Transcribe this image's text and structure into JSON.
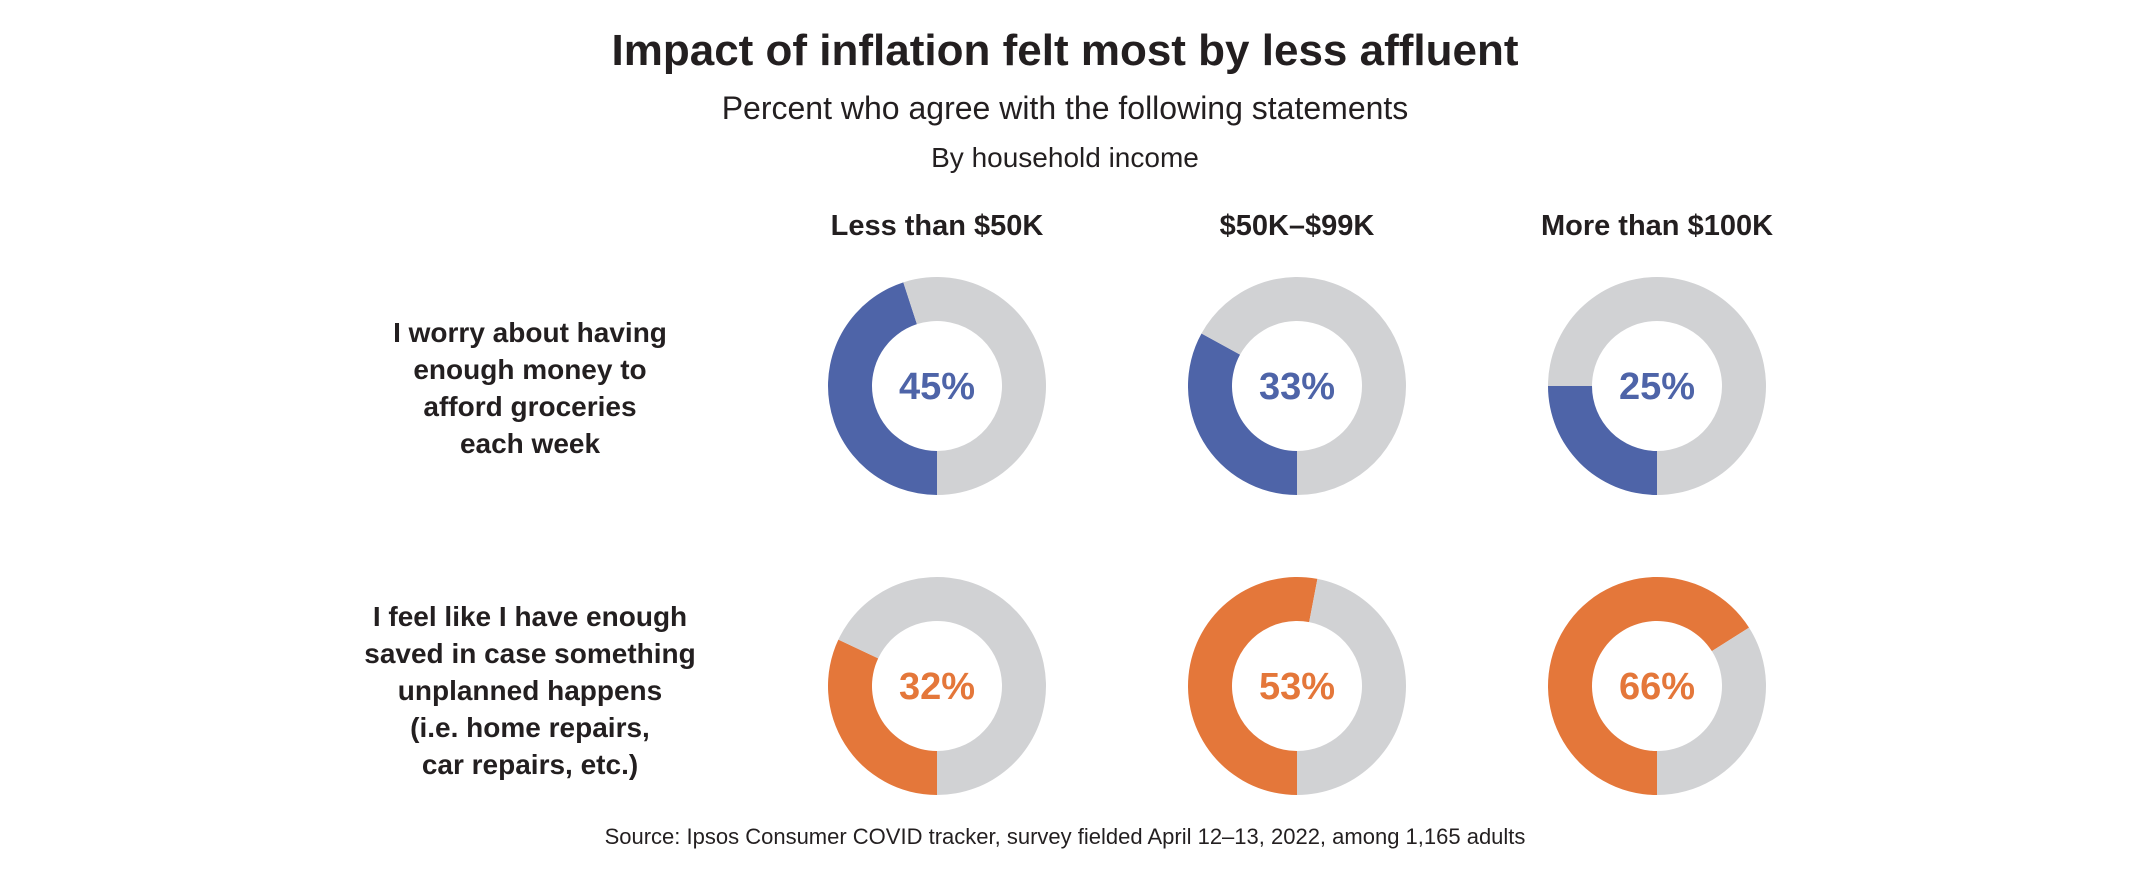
{
  "chart_data": {
    "type": "donut",
    "title": "Impact of inflation felt most by less affluent",
    "subtitle": "Percent who agree with the following statements",
    "group_label": "By household income",
    "categories": [
      "Less than $50K",
      "$50K–$99K",
      "More than $100K"
    ],
    "series": [
      {
        "name": "I worry about having\nenough money to\nafford groceries\neach week",
        "values": [
          45,
          33,
          25
        ],
        "labels": [
          "45%",
          "33%",
          "25%"
        ],
        "color": "#4e64a8"
      },
      {
        "name": "I feel like I have enough\nsaved in case something\nunplanned happens\n(i.e. home repairs,\ncar repairs, etc.)",
        "values": [
          32,
          53,
          66
        ],
        "labels": [
          "32%",
          "53%",
          "66%"
        ],
        "color": "#e4773a"
      }
    ],
    "remainder_color": "#d1d2d4",
    "source": "Source: Ipsos Consumer COVID tracker, survey fielded April 12–13, 2022, among 1,165 adults"
  }
}
